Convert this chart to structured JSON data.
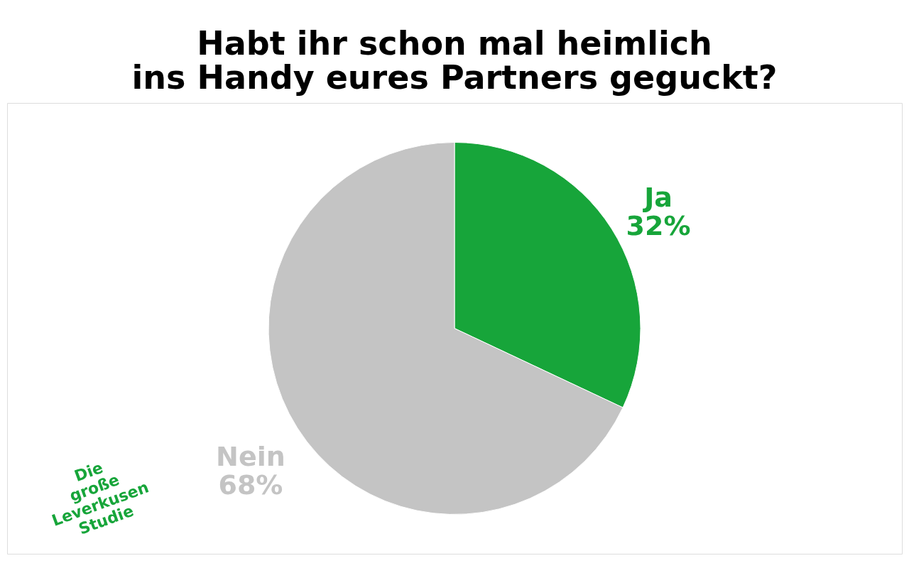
{
  "chart_data": {
    "type": "pie",
    "title": "Habt ihr schon mal heimlich\nins Handy eures Partners geguckt?",
    "categories": [
      "Ja",
      "Nein"
    ],
    "values": [
      32,
      68
    ],
    "value_labels": [
      "32%",
      "68%"
    ],
    "colors": [
      "#17a53a",
      "#c4c4c4"
    ],
    "annotations": [
      "Die\ngroße\nLeverkusen\nStudie"
    ]
  }
}
